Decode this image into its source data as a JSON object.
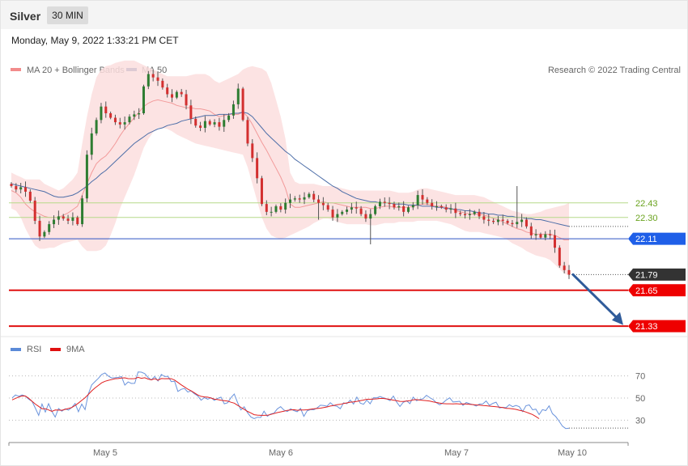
{
  "header": {
    "instrument": "Silver",
    "timeframe": "30 MIN"
  },
  "datetime": "Monday, May 9, 2022 1:33:21 PM CET",
  "legend": {
    "items": [
      {
        "label": "MA 20 + Bollinger Bands",
        "color": "#f28b8b"
      },
      {
        "label": "MA 50",
        "color": "#2e5b9a"
      }
    ]
  },
  "copyright": "Research © 2022 Trading Central",
  "rsi_legend": {
    "items": [
      {
        "label": "RSI",
        "color": "#5b8ad8"
      },
      {
        "label": "9MA",
        "color": "#e01010"
      }
    ]
  },
  "chart_data": [
    {
      "type": "candlestick",
      "x_labels": [
        "May 5",
        "May 6",
        "May 7",
        "May 10"
      ],
      "y_range": [
        21.28,
        23.75
      ],
      "levels": [
        {
          "value": 22.43,
          "label": "22.43",
          "style": "green"
        },
        {
          "value": 22.3,
          "label": "22.30",
          "style": "green"
        },
        {
          "value": 22.11,
          "label": "22.11",
          "style": "blue"
        },
        {
          "value": 21.79,
          "label": "21.79",
          "style": "last"
        },
        {
          "value": 21.65,
          "label": "21.65",
          "style": "red"
        },
        {
          "value": 21.33,
          "label": "21.33",
          "style": "red"
        }
      ],
      "close": [
        22.58,
        22.55,
        22.57,
        22.53,
        22.45,
        22.27,
        22.13,
        22.17,
        22.24,
        22.28,
        22.31,
        22.29,
        22.27,
        22.3,
        22.24,
        22.47,
        22.86,
        23.05,
        23.17,
        23.29,
        23.23,
        23.19,
        23.15,
        23.13,
        23.15,
        23.2,
        23.22,
        23.23,
        23.47,
        23.58,
        23.55,
        23.52,
        23.46,
        23.4,
        23.37,
        23.42,
        23.4,
        23.3,
        23.18,
        23.12,
        23.1,
        23.16,
        23.13,
        23.15,
        23.11,
        23.17,
        23.21,
        23.31,
        23.45,
        23.17,
        22.96,
        22.83,
        22.65,
        22.42,
        22.35,
        22.35,
        22.4,
        22.37,
        22.43,
        22.46,
        22.47,
        22.46,
        22.48,
        22.51,
        22.46,
        22.43,
        22.41,
        22.37,
        22.3,
        22.33,
        22.35,
        22.37,
        22.39,
        22.38,
        22.33,
        22.29,
        22.33,
        22.4,
        22.44,
        22.43,
        22.42,
        22.39,
        22.4,
        22.35,
        22.39,
        22.41,
        22.5,
        22.46,
        22.43,
        22.4,
        22.4,
        22.39,
        22.37,
        22.38,
        22.34,
        22.33,
        22.32,
        22.33,
        22.35,
        22.31,
        22.28,
        22.27,
        22.26,
        22.28,
        22.27,
        22.25,
        22.24,
        22.26,
        22.28,
        22.22,
        22.14,
        22.15,
        22.12,
        22.15,
        22.14,
        22.03,
        21.87,
        21.83,
        21.79
      ],
      "bollinger_upper": [
        22.7,
        22.68,
        22.66,
        22.64,
        22.64,
        22.64,
        22.64,
        22.6,
        22.58,
        22.56,
        22.54,
        22.56,
        22.6,
        22.64,
        22.7,
        22.96,
        23.2,
        23.4,
        23.55,
        23.62,
        23.65,
        23.66,
        23.68,
        23.69,
        23.7,
        23.7,
        23.7,
        23.68,
        23.66,
        23.64,
        23.62,
        23.6,
        23.58,
        23.56,
        23.56,
        23.56,
        23.56,
        23.56,
        23.57,
        23.58,
        23.58,
        23.58,
        23.56,
        23.52,
        23.5,
        23.52,
        23.54,
        23.56,
        23.58,
        23.62,
        23.64,
        23.65,
        23.64,
        23.63,
        23.6,
        23.5,
        23.35,
        23.2,
        23.0,
        22.7,
        22.62,
        22.6,
        22.6,
        22.6,
        22.6,
        22.59,
        22.58,
        22.58,
        22.58,
        22.57,
        22.56,
        22.55,
        22.54,
        22.54,
        22.54,
        22.54,
        22.54,
        22.54,
        22.54,
        22.54,
        22.54,
        22.53,
        22.52,
        22.52,
        22.52,
        22.53,
        22.55,
        22.56,
        22.56,
        22.55,
        22.54,
        22.53,
        22.52,
        22.51,
        22.5,
        22.5,
        22.5,
        22.5,
        22.5,
        22.49,
        22.48,
        22.46,
        22.44,
        22.42,
        22.4,
        22.38,
        22.36,
        22.35,
        22.34,
        22.33,
        22.33,
        22.34,
        22.35,
        22.37,
        22.38,
        22.39,
        22.4,
        22.41,
        22.43
      ],
      "bollinger_lower": [
        22.38,
        22.36,
        22.3,
        22.2,
        22.12,
        22.05,
        22.02,
        22.02,
        22.03,
        22.03,
        22.05,
        22.07,
        22.08,
        22.09,
        22.1,
        22.04,
        22.0,
        22.0,
        22.0,
        22.01,
        22.05,
        22.14,
        22.25,
        22.38,
        22.48,
        22.58,
        22.68,
        22.8,
        22.92,
        23.0,
        23.06,
        23.1,
        23.1,
        23.09,
        23.07,
        23.04,
        23.02,
        23.0,
        22.98,
        22.96,
        22.95,
        22.94,
        22.93,
        22.92,
        22.91,
        22.9,
        22.89,
        22.88,
        22.87,
        22.86,
        22.75,
        22.6,
        22.45,
        22.3,
        22.2,
        22.14,
        22.12,
        22.11,
        22.12,
        22.14,
        22.16,
        22.18,
        22.2,
        22.22,
        22.25,
        22.27,
        22.29,
        22.29,
        22.28,
        22.26,
        22.25,
        22.24,
        22.24,
        22.24,
        22.24,
        22.24,
        22.23,
        22.23,
        22.24,
        22.25,
        22.25,
        22.25,
        22.26,
        22.26,
        22.26,
        22.26,
        22.27,
        22.27,
        22.27,
        22.27,
        22.27,
        22.26,
        22.25,
        22.24,
        22.22,
        22.2,
        22.18,
        22.17,
        22.17,
        22.17,
        22.16,
        22.15,
        22.14,
        22.13,
        22.12,
        22.1,
        22.07,
        22.05,
        22.03,
        22.0,
        21.98,
        21.96,
        21.95,
        21.94,
        21.92,
        21.88,
        21.84,
        21.8,
        21.78
      ],
      "ma20": [
        22.54,
        22.52,
        22.48,
        22.42,
        22.38,
        22.35,
        22.33,
        22.31,
        22.3,
        22.3,
        22.3,
        22.32,
        22.34,
        22.37,
        22.4,
        22.5,
        22.6,
        22.7,
        22.78,
        22.82,
        22.85,
        22.9,
        22.96,
        23.03,
        23.09,
        23.14,
        23.19,
        23.24,
        23.29,
        23.32,
        23.34,
        23.35,
        23.34,
        23.33,
        23.32,
        23.3,
        23.29,
        23.28,
        23.28,
        23.27,
        23.27,
        23.26,
        23.25,
        23.22,
        23.2,
        23.21,
        23.22,
        23.22,
        23.22,
        23.24,
        23.2,
        23.13,
        23.05,
        22.97,
        22.9,
        22.82,
        22.74,
        22.66,
        22.56,
        22.42,
        22.39,
        22.39,
        22.4,
        22.41,
        22.42,
        22.43,
        22.44,
        22.43,
        22.43,
        22.42,
        22.41,
        22.4,
        22.39,
        22.39,
        22.39,
        22.39,
        22.38,
        22.38,
        22.39,
        22.4,
        22.4,
        22.39,
        22.39,
        22.39,
        22.39,
        22.4,
        22.41,
        22.42,
        22.42,
        22.41,
        22.4,
        22.4,
        22.39,
        22.38,
        22.36,
        22.35,
        22.34,
        22.33,
        22.33,
        22.33,
        22.32,
        22.31,
        22.29,
        22.28,
        22.26,
        22.24,
        22.22,
        22.2,
        22.19,
        22.17,
        22.16,
        22.15,
        22.15,
        22.15,
        22.15,
        22.14,
        22.12,
        22.1,
        22.1
      ],
      "ma50": [
        22.6,
        22.59,
        22.58,
        22.57,
        22.56,
        22.55,
        22.54,
        22.53,
        22.51,
        22.49,
        22.48,
        22.48,
        22.49,
        22.5,
        22.52,
        22.55,
        22.58,
        22.62,
        22.65,
        22.69,
        22.72,
        22.76,
        22.8,
        22.84,
        22.88,
        22.92,
        22.96,
        22.99,
        23.02,
        23.05,
        23.07,
        23.09,
        23.1,
        23.12,
        23.13,
        23.14,
        23.16,
        23.17,
        23.18,
        23.19,
        23.2,
        23.21,
        23.21,
        23.21,
        23.22,
        23.22,
        23.22,
        23.23,
        23.23,
        23.24,
        23.23,
        23.2,
        23.15,
        23.1,
        23.05,
        23.01,
        22.97,
        22.93,
        22.89,
        22.86,
        22.82,
        22.79,
        22.76,
        22.73,
        22.7,
        22.67,
        22.64,
        22.61,
        22.58,
        22.56,
        22.53,
        22.51,
        22.49,
        22.47,
        22.46,
        22.45,
        22.44,
        22.44,
        22.43,
        22.43,
        22.43,
        22.42,
        22.42,
        22.42,
        22.41,
        22.41,
        22.41,
        22.4,
        22.4,
        22.4,
        22.39,
        22.39,
        22.38,
        22.38,
        22.37,
        22.37,
        22.36,
        22.36,
        22.35,
        22.34,
        22.34,
        22.33,
        22.33,
        22.32,
        22.32,
        22.31,
        22.31,
        22.3,
        22.3,
        22.29,
        22.29,
        22.28,
        22.28,
        22.27,
        22.26,
        22.25,
        22.24,
        22.23,
        22.22
      ]
    },
    {
      "type": "line",
      "name": "RSI",
      "y_range": [
        15,
        85
      ],
      "levels": [
        70,
        50,
        30
      ],
      "rsi": [
        50.1,
        52.8,
        51.6,
        52.8,
        51.7,
        48.9,
        47.0,
        40.9,
        34.4,
        44.6,
        37.4,
        45.0,
        38.0,
        32.9,
        40.6,
        38.2,
        40.3,
        39.1,
        41.5,
        45.1,
        37.7,
        44.5,
        39.6,
        53.8,
        61.8,
        64.9,
        67.7,
        71.2,
        72.6,
        69.8,
        68.1,
        68.3,
        68.6,
        69.3,
        61.7,
        64.5,
        63.1,
        63.3,
        73.5,
        73.3,
        72.0,
        68.6,
        66.3,
        69.4,
        65.4,
        71.3,
        69.4,
        69.6,
        64.8,
        65.1,
        56.0,
        57.9,
        58.6,
        55.4,
        56.4,
        53.9,
        52.0,
        48.0,
        50.4,
        48.9,
        50.3,
        47.9,
        49.7,
        50.8,
        44.8,
        45.8,
        50.3,
        53.6,
        45.9,
        39.3,
        42.1,
        36.8,
        33.0,
        31.5,
        32.7,
        32.5,
        38.2,
        33.5,
        35.6,
        36.4,
        40.2,
        42.3,
        39.2,
        37.8,
        40.2,
        38.7,
        37.7,
        40.7,
        33.5,
        38.5,
        39.6,
        39.4,
        41.1,
        43.5,
        43.2,
        42.6,
        45.8,
        43.2,
        42.6,
        40.4,
        45.7,
        44.9,
        48.2,
        44.5,
        50.9,
        45.5,
        44.4,
        48.1,
        44.8,
        50.3,
        50.2,
        51.3,
        50.2,
        49.3,
        47.7,
        51.8,
        46.5,
        42.4,
        46.1,
        47.5,
        45.0,
        50.8,
        47.6,
        48.7,
        49.5,
        52.5,
        50.4,
        48.6,
        45.8,
        43.9,
        45.8,
        48.3,
        50.2,
        46.4,
        46.7,
        47.1,
        43.4,
        46.0,
        44.9,
        44.1,
        42.8,
        44.6,
        44.7,
        47.4,
        43.4,
        45.2,
        46.3,
        41.1,
        41.6,
        41.3,
        44.0,
        42.2,
        43.4,
        42.2,
        37.8,
        43.1,
        43.8,
        39.4,
        40.0,
        35.1,
        39.6,
        38.7,
        42.9,
        35.9,
        33.3,
        29.2,
        24.8,
        22.5,
        22.9
      ],
      "ma9": [
        48.3,
        49.7,
        50.9,
        51.9,
        51.8,
        49.8,
        47.1,
        44.5,
        42.5,
        40.3,
        40.4,
        39.3,
        38.0,
        39.2,
        39.1,
        39.0,
        39.8,
        40.6,
        41.5,
        43.3,
        45.5,
        47.9,
        50.3,
        53.3,
        56.5,
        59.1,
        61.4,
        63.7,
        65.1,
        66.0,
        66.6,
        67.4,
        67.6,
        68.1,
        68.2,
        67.5,
        67.4,
        67.5,
        68.7,
        67.8,
        68.3,
        67.1,
        66.4,
        67.4,
        66.1,
        67.6,
        67.4,
        67.5,
        67.4,
        66.2,
        64.1,
        61.9,
        60.0,
        58.0,
        56.5,
        54.7,
        52.8,
        51.5,
        51.0,
        50.8,
        50.0,
        49.0,
        48.6,
        48.0,
        47.7,
        47.3,
        46.2,
        45.4,
        43.5,
        41.6,
        39.9,
        38.0,
        36.6,
        35.0,
        34.6,
        34.4,
        34.4,
        34.5,
        35.2,
        36.0,
        36.9,
        37.5,
        38.1,
        38.9,
        39.3,
        39.5,
        39.0,
        39.2,
        39.2,
        39.4,
        39.9,
        40.3,
        40.6,
        40.9,
        41.5,
        42.0,
        42.8,
        43.3,
        44.0,
        44.3,
        45.1,
        45.6,
        46.3,
        46.6,
        47.0,
        47.7,
        48.2,
        48.9,
        48.9,
        49.1,
        49.3,
        49.6,
        49.6,
        49.2,
        48.7,
        48.1,
        47.6,
        47.0,
        46.9,
        47.2,
        47.7,
        48.3,
        48.6,
        48.2,
        47.9,
        47.6,
        47.2,
        46.6,
        46.0,
        45.4,
        45.0,
        44.8,
        44.8,
        44.7,
        44.9,
        44.6,
        44.7,
        44.6,
        44.4,
        44.1,
        43.8,
        43.6,
        43.3,
        43.1,
        42.7,
        42.4,
        42.1,
        41.8,
        41.4,
        40.7,
        40.6,
        40.2,
        39.8,
        39.0,
        38.3,
        37.4,
        36.2,
        35.1,
        33.4,
        31.4
      ],
      "series": [
        {
          "name": "RSI"
        },
        {
          "name": "9MA"
        }
      ]
    }
  ]
}
